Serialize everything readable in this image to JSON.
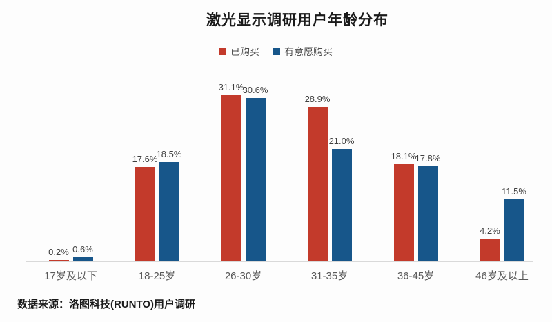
{
  "title": "激光显示调研用户年龄分布",
  "source": "数据来源：洛图科技(RUNTO)用户调研",
  "colors": {
    "purchased": "#c33a2b",
    "intend": "#17568a",
    "axis": "#d9d9d9",
    "value_label": "#3f3f3f",
    "category_label": "#595959"
  },
  "chart_data": {
    "type": "bar",
    "title": "激光显示调研用户年龄分布",
    "categories": [
      "17岁及以下",
      "18-25岁",
      "26-30岁",
      "31-35岁",
      "36-45岁",
      "46岁及以上"
    ],
    "series": [
      {
        "name": "已购买",
        "color": "#c33a2b",
        "values": [
          0.2,
          17.6,
          31.1,
          28.9,
          18.1,
          4.2
        ],
        "labels": [
          "0.2%",
          "17.6%",
          "31.1%",
          "28.9%",
          "18.1%",
          "4.2%"
        ]
      },
      {
        "name": "有意愿购买",
        "color": "#17568a",
        "values": [
          0.6,
          18.5,
          30.6,
          21.0,
          17.8,
          11.5
        ],
        "labels": [
          "0.6%",
          "18.5%",
          "30.6%",
          "21.0%",
          "17.8%",
          "11.5%"
        ]
      }
    ],
    "xlabel": "",
    "ylabel": "",
    "ylim": [
      0,
      35
    ],
    "grid": false,
    "legend_position": "top",
    "value_labels_shown": true,
    "source_note": "数据来源：洛图科技(RUNTO)用户调研"
  }
}
